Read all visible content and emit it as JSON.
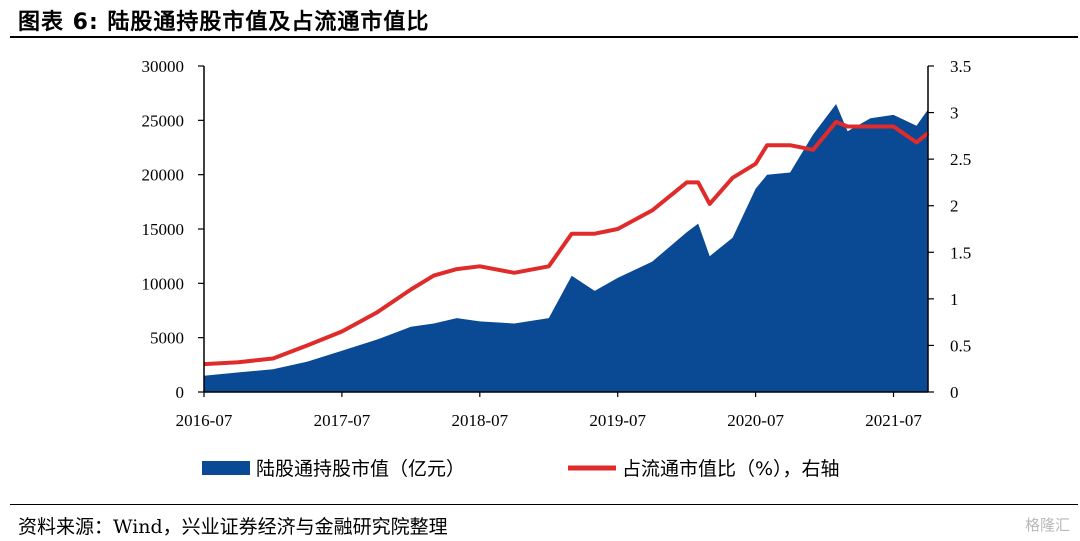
{
  "header": {
    "title": "图表 6:  陆股通持股市值及占流通市值比"
  },
  "footer": {
    "source": "资料来源：Wind，兴业证券经济与金融研究院整理",
    "watermark": "格隆汇"
  },
  "colors": {
    "area": "#0a4a94",
    "line": "#e02b2b"
  },
  "chart_data": {
    "type": "area",
    "title": "",
    "x_tick_labels": [
      "2016-07",
      "2017-07",
      "2018-07",
      "2019-07",
      "2020-07",
      "2021-07"
    ],
    "x_ticks": [
      "2016-07",
      "2017-07",
      "2018-07",
      "2019-07",
      "2020-07",
      "2021-07"
    ],
    "x_range": [
      "2016-07",
      "2021-10"
    ],
    "y_left": {
      "range": [
        0,
        30000
      ],
      "ticks": [
        0,
        5000,
        10000,
        15000,
        20000,
        25000,
        30000
      ]
    },
    "y_right": {
      "range": [
        0,
        3.5
      ],
      "ticks": [
        0,
        0.5,
        1,
        1.5,
        2,
        2.5,
        3,
        3.5
      ],
      "tick_labels": [
        "0",
        "0.5",
        "1",
        "1.5",
        "2",
        "2.5",
        "3",
        "3.5"
      ],
      "label": "右轴"
    },
    "grid": false,
    "legend": {
      "placement": "bottom",
      "entries": [
        "陆股通持股市值（亿元）",
        "占流通市值比（%），右轴"
      ]
    },
    "series": [
      {
        "name": "陆股通持股市值（亿元）",
        "type": "area",
        "axis": "left",
        "x": [
          "2016-07",
          "2016-10",
          "2017-01",
          "2017-04",
          "2017-07",
          "2017-10",
          "2018-01",
          "2018-03",
          "2018-05",
          "2018-07",
          "2018-10",
          "2019-01",
          "2019-03",
          "2019-05",
          "2019-07",
          "2019-10",
          "2020-01",
          "2020-02",
          "2020-03",
          "2020-05",
          "2020-07",
          "2020-08",
          "2020-10",
          "2020-12",
          "2021-02",
          "2021-03",
          "2021-05",
          "2021-07",
          "2021-09",
          "2021-10"
        ],
        "values": [
          1500,
          1800,
          2100,
          2800,
          3800,
          4800,
          6000,
          6300,
          6800,
          6500,
          6300,
          6800,
          10700,
          9300,
          10500,
          12000,
          14700,
          15500,
          12500,
          14200,
          18700,
          20000,
          20200,
          23700,
          26500,
          24000,
          25200,
          25500,
          24500,
          26000
        ]
      },
      {
        "name": "占流通市值比（%），右轴",
        "type": "line",
        "axis": "right",
        "x": [
          "2016-07",
          "2016-10",
          "2017-01",
          "2017-04",
          "2017-07",
          "2017-10",
          "2018-01",
          "2018-03",
          "2018-05",
          "2018-07",
          "2018-10",
          "2019-01",
          "2019-03",
          "2019-05",
          "2019-07",
          "2019-10",
          "2020-01",
          "2020-02",
          "2020-03",
          "2020-05",
          "2020-07",
          "2020-08",
          "2020-10",
          "2020-12",
          "2021-02",
          "2021-03",
          "2021-05",
          "2021-07",
          "2021-09",
          "2021-10"
        ],
        "values": [
          0.3,
          0.32,
          0.36,
          0.5,
          0.65,
          0.85,
          1.1,
          1.25,
          1.32,
          1.35,
          1.28,
          1.35,
          1.7,
          1.7,
          1.75,
          1.95,
          2.25,
          2.25,
          2.02,
          2.3,
          2.45,
          2.65,
          2.65,
          2.6,
          2.9,
          2.85,
          2.85,
          2.85,
          2.68,
          2.78
        ]
      }
    ]
  }
}
